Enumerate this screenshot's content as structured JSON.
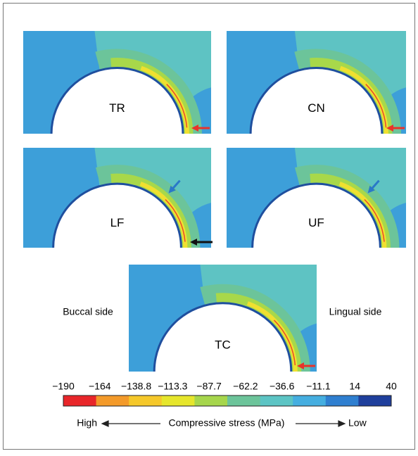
{
  "panels": [
    {
      "label": "TR"
    },
    {
      "label": "CN"
    },
    {
      "label": "LF"
    },
    {
      "label": "UF"
    },
    {
      "label": "TC"
    }
  ],
  "side_labels": {
    "left": "Buccal side",
    "right": "Lingual side"
  },
  "colorbar": {
    "ticks": [
      "−190",
      "−164",
      "−138.8",
      "−113.3",
      "−87.7",
      "−62.2",
      "−36.6",
      "−11.1",
      "14",
      "40"
    ],
    "high": "High",
    "title": "Compressive stress (MPa)",
    "low": "Low"
  }
}
